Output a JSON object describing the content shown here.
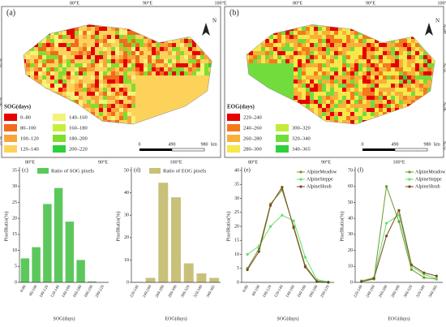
{
  "maps": [
    {
      "label": "(a)",
      "top_lon": [
        "80°E",
        "90°E",
        "100°E"
      ],
      "lat": [
        "35°N",
        "30°N",
        "25°N"
      ],
      "north": "N",
      "scale": [
        "0",
        "490",
        "980",
        "km"
      ],
      "legend": {
        "title": "SOG(days)",
        "items": [
          {
            "label": "0–80",
            "color": "#e60000"
          },
          {
            "label": "80–100",
            "color": "#f26b1d"
          },
          {
            "label": "100–120",
            "color": "#f7a53a"
          },
          {
            "label": "120–140",
            "color": "#fcd25a"
          },
          {
            "label": "140–160",
            "color": "#f4f27a"
          },
          {
            "label": "160–180",
            "color": "#c8ee3c"
          },
          {
            "label": "180–200",
            "color": "#7fde2c"
          },
          {
            "label": "200–220",
            "color": "#2fcf3a"
          }
        ]
      }
    },
    {
      "label": "(b)",
      "top_lon": [
        "80°E",
        "90°E",
        "100°E"
      ],
      "lat": [
        "40°N",
        "35°N",
        "30°N",
        "25°N"
      ],
      "north": "N",
      "scale": [
        "0",
        "490",
        "980",
        "km"
      ],
      "bottom_lon": [
        "80°E",
        "90°E",
        "100°E"
      ],
      "legend": {
        "title": "EOG(days)",
        "items": [
          {
            "label": "220–240",
            "color": "#e60000"
          },
          {
            "label": "240–260",
            "color": "#f57a1c"
          },
          {
            "label": "260–280",
            "color": "#f8b03a"
          },
          {
            "label": "280–300",
            "color": "#f6e84a"
          },
          {
            "label": "300–320",
            "color": "#c2ec3a"
          },
          {
            "label": "320–340",
            "color": "#72dc3c"
          },
          {
            "label": "340–365",
            "color": "#2fcf3a"
          }
        ]
      }
    }
  ],
  "bottom_lon_a": [
    "80°E",
    "90°E",
    "100°E"
  ],
  "chart_data": [
    {
      "type": "bar",
      "label": "(c)",
      "x_label": "SOG(days)",
      "y_label": "PixelRatio(%)",
      "categories": [
        "0-80",
        "80-100",
        "100-120",
        "120-140",
        "140-160",
        "160-180",
        "180-200",
        "200-220"
      ],
      "series": [
        {
          "name": "Ratio of SOG pixels",
          "color": "#5cc85c",
          "values": [
            7.5,
            11,
            24.5,
            29.5,
            19,
            7,
            0.3,
            0
          ]
        }
      ],
      "ylim": [
        0,
        35
      ],
      "yticks": [
        0,
        5,
        10,
        15,
        20,
        25,
        30,
        35
      ]
    },
    {
      "type": "bar",
      "label": "(d)",
      "x_label": "EOG(days)",
      "y_label": "PixelRatio(%)",
      "categories": [
        "220-240",
        "240-260",
        "260-280",
        "280-300",
        "300-320",
        "320-340",
        "340-365"
      ],
      "series": [
        {
          "name": "Ratio of EOG pixels",
          "color": "#c9c07a",
          "values": [
            0.2,
            2,
            44.5,
            38,
            8.5,
            4,
            2
          ]
        }
      ],
      "ylim": [
        0,
        50
      ],
      "yticks": [
        0,
        10,
        20,
        30,
        40,
        50
      ]
    },
    {
      "type": "line",
      "label": "(e)",
      "x_label": "SOG(days)",
      "y_label": "PixelRatio(%)",
      "categories": [
        "0-80",
        "80-100",
        "100-120",
        "120-140",
        "140-160",
        "160-180",
        "180-200",
        "200-220"
      ],
      "series": [
        {
          "name": "AlpineMeadow",
          "color": "#6b9a2b",
          "values": [
            5,
            12,
            28,
            33,
            20,
            6,
            0.5,
            0
          ]
        },
        {
          "name": "AlpineSteppe",
          "color": "#66dd66",
          "values": [
            10,
            13,
            20,
            24,
            22,
            9,
            1,
            0.2
          ]
        },
        {
          "name": "AlpineShrub",
          "color": "#7a4a1a",
          "values": [
            4.5,
            11,
            27.5,
            34,
            19.5,
            5.5,
            0.3,
            0
          ]
        }
      ],
      "ylim": [
        0,
        40
      ],
      "yticks": [
        0,
        5,
        10,
        15,
        20,
        25,
        30,
        35,
        40
      ]
    },
    {
      "type": "line",
      "label": "(f)",
      "x_label": "EOG(days)",
      "y_label": "PixelRatio(%)",
      "categories": [
        "220-240",
        "240-260",
        "260-280",
        "280-300",
        "300-320",
        "320-340",
        "340-365"
      ],
      "series": [
        {
          "name": "AlpineMeadow",
          "color": "#6b9a2b",
          "values": [
            0.5,
            2,
            60,
            38,
            8,
            3,
            2
          ]
        },
        {
          "name": "AlpineSteppe",
          "color": "#66dd66",
          "values": [
            1,
            3,
            37,
            42,
            10,
            5,
            2.5
          ]
        },
        {
          "name": "AlpineShrub",
          "color": "#7a4a1a",
          "values": [
            0.5,
            2.5,
            29,
            45,
            11,
            6,
            4
          ]
        }
      ],
      "ylim": [
        0,
        70
      ],
      "yticks": [
        0,
        10,
        20,
        30,
        40,
        50,
        60,
        70
      ]
    }
  ]
}
